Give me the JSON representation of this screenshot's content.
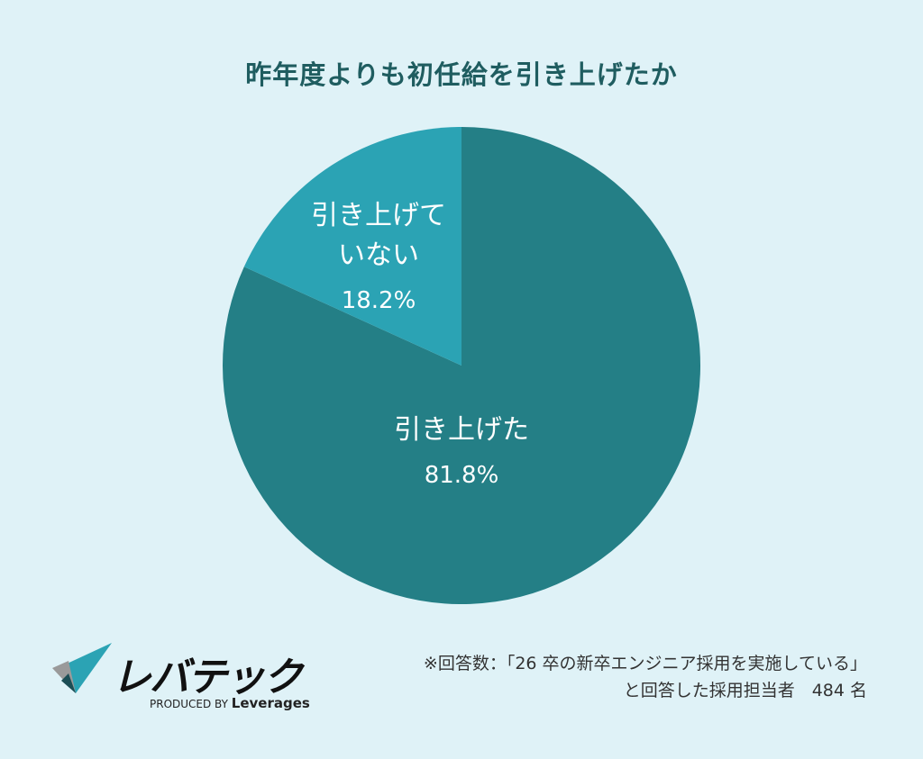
{
  "chart_data": {
    "type": "pie",
    "title": "昨年度よりも初任給を引き上げたか",
    "slices": [
      {
        "label": "引き上げた",
        "value": 81.8,
        "value_label": "81.8%",
        "color": "#247f86"
      },
      {
        "label": "引き上げて\nいない",
        "value": 18.2,
        "value_label": "18.2%",
        "color": "#2ba3b4"
      }
    ],
    "start": "top",
    "direction": "clockwise"
  },
  "note": {
    "line1": "※回答数：「26 卒の新卒エンジニア採用を実施している」",
    "line2": "と回答した採用担当者　484 名"
  },
  "logo": {
    "text": "レバテック",
    "sub_prefix": "PRODUCED BY",
    "sub_brand": "Leverages"
  },
  "colors": {
    "background": "#dff2f7",
    "title": "#1f5d60"
  }
}
